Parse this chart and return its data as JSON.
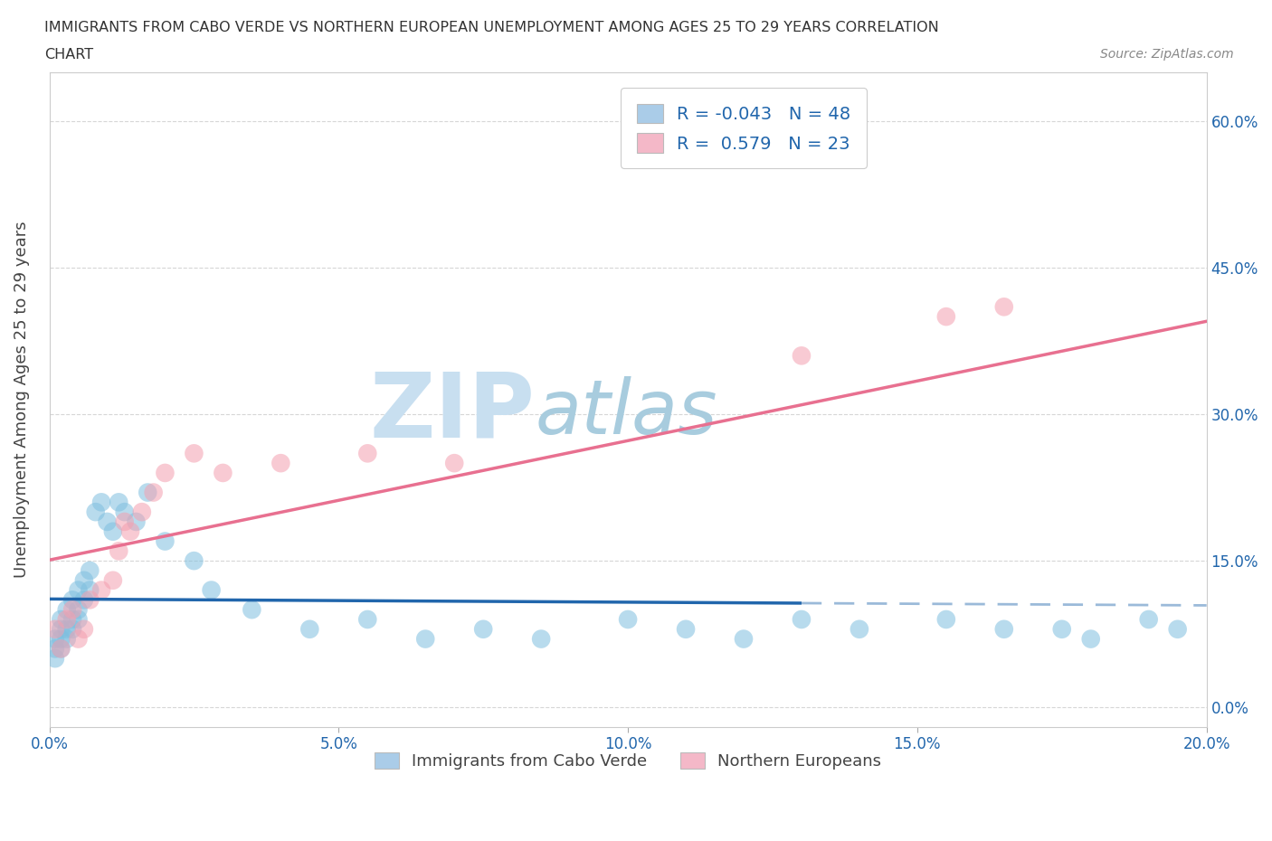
{
  "title_line1": "IMMIGRANTS FROM CABO VERDE VS NORTHERN EUROPEAN UNEMPLOYMENT AMONG AGES 25 TO 29 YEARS CORRELATION",
  "title_line2": "CHART",
  "source": "Source: ZipAtlas.com",
  "ylabel": "Unemployment Among Ages 25 to 29 years",
  "xlim": [
    0.0,
    0.2
  ],
  "ylim": [
    -0.02,
    0.65
  ],
  "xticks": [
    0.0,
    0.05,
    0.1,
    0.15,
    0.2
  ],
  "yticks": [
    0.0,
    0.15,
    0.3,
    0.45,
    0.6
  ],
  "xticklabels": [
    "0.0%",
    "5.0%",
    "10.0%",
    "15.0%",
    "20.0%"
  ],
  "yticklabels": [
    "0.0%",
    "15.0%",
    "30.0%",
    "45.0%",
    "60.0%"
  ],
  "blue_color": "#7fbfdf",
  "pink_color": "#f4a0b0",
  "blue_line_color": "#2166ac",
  "pink_line_color": "#e87090",
  "legend_blue_color": "#aacce8",
  "legend_pink_color": "#f4b8c8",
  "watermark_zip": "ZIP",
  "watermark_atlas": "atlas",
  "watermark_color_zip": "#c0d8ec",
  "watermark_color_atlas": "#a8c8e0",
  "R_blue": -0.043,
  "N_blue": 48,
  "R_pink": 0.579,
  "N_pink": 23,
  "legend_label_blue": "Immigrants from Cabo Verde",
  "legend_label_pink": "Northern Europeans",
  "blue_x": [
    0.001,
    0.001,
    0.001,
    0.002,
    0.002,
    0.002,
    0.002,
    0.003,
    0.003,
    0.003,
    0.004,
    0.004,
    0.004,
    0.005,
    0.005,
    0.005,
    0.006,
    0.006,
    0.007,
    0.007,
    0.008,
    0.009,
    0.01,
    0.011,
    0.012,
    0.013,
    0.015,
    0.017,
    0.02,
    0.025,
    0.028,
    0.035,
    0.045,
    0.055,
    0.065,
    0.075,
    0.085,
    0.1,
    0.11,
    0.12,
    0.13,
    0.14,
    0.155,
    0.165,
    0.175,
    0.18,
    0.19,
    0.195
  ],
  "blue_y": [
    0.05,
    0.07,
    0.06,
    0.09,
    0.08,
    0.06,
    0.07,
    0.1,
    0.08,
    0.07,
    0.11,
    0.09,
    0.08,
    0.12,
    0.1,
    0.09,
    0.13,
    0.11,
    0.14,
    0.12,
    0.2,
    0.21,
    0.19,
    0.18,
    0.21,
    0.2,
    0.19,
    0.22,
    0.17,
    0.15,
    0.12,
    0.1,
    0.08,
    0.09,
    0.07,
    0.08,
    0.07,
    0.09,
    0.08,
    0.07,
    0.09,
    0.08,
    0.09,
    0.08,
    0.08,
    0.07,
    0.09,
    0.08
  ],
  "pink_x": [
    0.001,
    0.002,
    0.003,
    0.004,
    0.005,
    0.006,
    0.007,
    0.009,
    0.011,
    0.012,
    0.013,
    0.014,
    0.016,
    0.018,
    0.02,
    0.025,
    0.03,
    0.04,
    0.055,
    0.07,
    0.13,
    0.155,
    0.165
  ],
  "pink_y": [
    0.08,
    0.06,
    0.09,
    0.1,
    0.07,
    0.08,
    0.11,
    0.12,
    0.13,
    0.16,
    0.19,
    0.18,
    0.2,
    0.22,
    0.24,
    0.26,
    0.24,
    0.25,
    0.26,
    0.25,
    0.36,
    0.4,
    0.41
  ],
  "blue_line_solid_end": 0.13,
  "pink_line_end": 0.2
}
